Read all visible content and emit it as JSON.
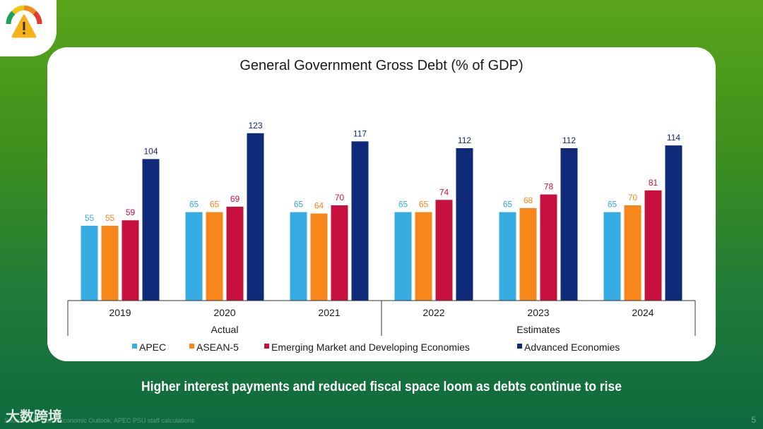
{
  "headline": "Higher interest payments and reduced fiscal space loom as debts continue to rise",
  "source": "Source: IMF World Economic Outlook; APEC PSU staff calculations",
  "page_number": "5",
  "watermark": "大数跨境",
  "logo": {
    "icon": "gauge-warning-icon"
  },
  "colors": {
    "APEC": "#36ace2",
    "ASEAN-5": "#f7861b",
    "EMDE": "#c8103e",
    "Advanced": "#0e2a78"
  },
  "chart_data": {
    "type": "bar",
    "title": "General Government Gross Debt (% of GDP)",
    "xlabel": "",
    "ylabel": "",
    "categories": [
      "2019",
      "2020",
      "2021",
      "2022",
      "2023",
      "2024"
    ],
    "groups": [
      {
        "label": "Actual",
        "categories": [
          "2019",
          "2020",
          "2021"
        ]
      },
      {
        "label": "Estimates",
        "categories": [
          "2022",
          "2023",
          "2024"
        ]
      }
    ],
    "series": [
      {
        "name": "APEC",
        "color": "#36ace2",
        "values": [
          55,
          65,
          65,
          65,
          65,
          65
        ]
      },
      {
        "name": "ASEAN-5",
        "color": "#f7861b",
        "values": [
          55,
          65,
          64,
          65,
          68,
          70
        ]
      },
      {
        "name": "Emerging Market and Developing Economies",
        "color": "#c8103e",
        "values": [
          59,
          69,
          70,
          74,
          78,
          81
        ]
      },
      {
        "name": "Advanced Economies",
        "color": "#0e2a78",
        "values": [
          104,
          123,
          117,
          112,
          112,
          114
        ]
      }
    ],
    "ylim": [
      0,
      140
    ],
    "grid": false,
    "data_labels": true,
    "legend": "bottom"
  }
}
